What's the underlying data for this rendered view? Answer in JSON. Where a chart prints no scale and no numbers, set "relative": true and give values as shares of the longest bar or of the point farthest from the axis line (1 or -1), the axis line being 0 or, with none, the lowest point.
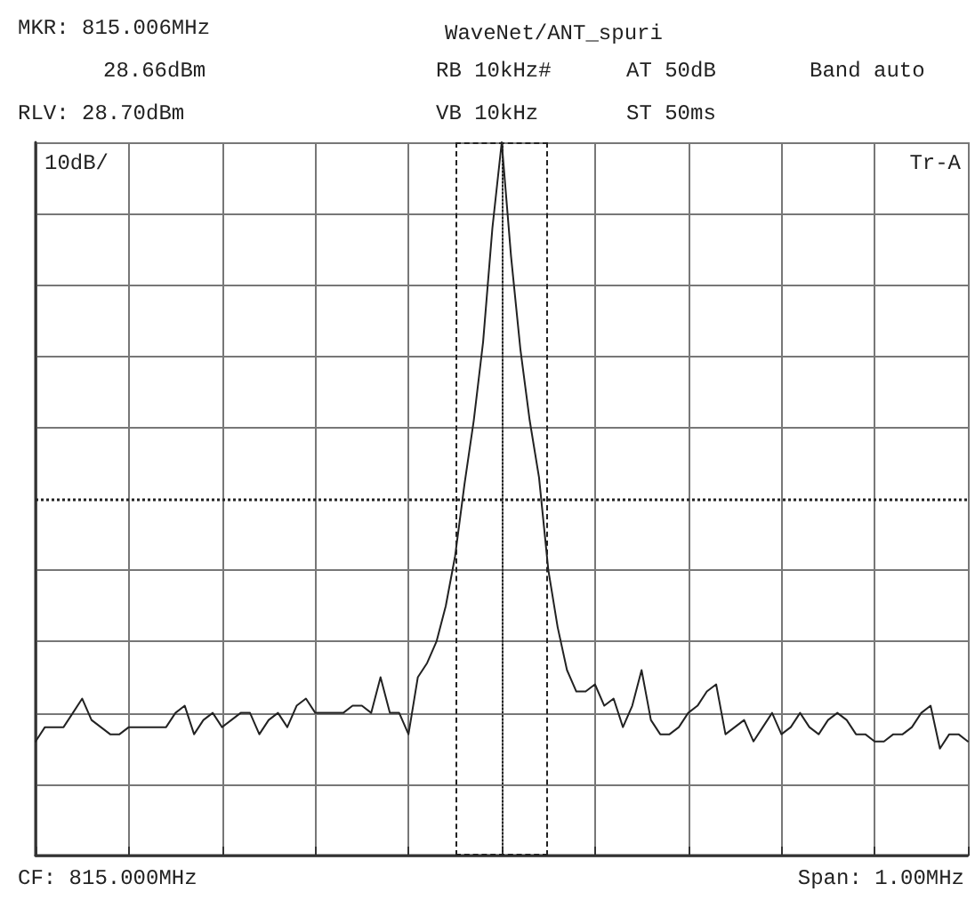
{
  "chart_data": {
    "type": "line",
    "title": "WaveNet/ANT_spuri",
    "annotations": [
      "MKR: 815.006MHz",
      "28.66dBm",
      "RLV: 28.70dBm",
      "RB 10kHz#",
      "AT 50dB",
      "Band auto",
      "VB 10kHz",
      "ST 50ms",
      "10dB/",
      "Tr-A",
      "CF: 815.000MHz",
      "Span: 1.00MHz"
    ],
    "relative": true,
    "categories": [
      null,
      null,
      null,
      null,
      null,
      null,
      null,
      null,
      null,
      null,
      null,
      null,
      null,
      null,
      null,
      null,
      null,
      null,
      null,
      null,
      null,
      null,
      null,
      null,
      null,
      null,
      null,
      null,
      null,
      null,
      null,
      null,
      null,
      null,
      null,
      null,
      null,
      null,
      null,
      null,
      null,
      null,
      null,
      null,
      null,
      null,
      null,
      null,
      null,
      null,
      null,
      null,
      null,
      null,
      null,
      null,
      null,
      null,
      null,
      null,
      null,
      null,
      null,
      null,
      null,
      null,
      null,
      null,
      null,
      null,
      null,
      null,
      null,
      null,
      null,
      null,
      null,
      null,
      null,
      null,
      null,
      null,
      null,
      null,
      null,
      null,
      null,
      null,
      null,
      null,
      null,
      null,
      null,
      null,
      null,
      null,
      null,
      null,
      null,
      null,
      null
    ],
    "series": [
      {
        "color": "#222222",
        "values": [
          0.16,
          0.18,
          0.18,
          0.18,
          0.2,
          0.22,
          0.19,
          0.18,
          0.17,
          0.17,
          0.18,
          0.18,
          0.18,
          0.18,
          0.18,
          0.2,
          0.21,
          0.17,
          0.19,
          0.2,
          0.18,
          0.19,
          0.2,
          0.2,
          0.17,
          0.19,
          0.2,
          0.18,
          0.21,
          0.22,
          0.2,
          0.2,
          0.2,
          0.2,
          0.21,
          0.21,
          0.2,
          0.25,
          0.2,
          0.2,
          0.17,
          0.25,
          0.27,
          0.3,
          0.35,
          0.42,
          0.52,
          0.61,
          0.72,
          0.88,
          1,
          0.84,
          0.71,
          0.61,
          0.53,
          0.4,
          0.32,
          0.26,
          0.23,
          0.23,
          0.24,
          0.21,
          0.22,
          0.18,
          0.21,
          0.26,
          0.19,
          0.17,
          0.17,
          0.18,
          0.2,
          0.21,
          0.23,
          0.24,
          0.17,
          0.18,
          0.19,
          0.16,
          0.18,
          0.2,
          0.17,
          0.18,
          0.2,
          0.18,
          0.17,
          0.19,
          0.2,
          0.19,
          0.17,
          0.17,
          0.16,
          0.16,
          0.17,
          0.17,
          0.18,
          0.2,
          0.21,
          0.15,
          0.17,
          0.17,
          0.16
        ]
      }
    ],
    "ref_lines": [
      {
        "axis": "y",
        "value": 0.5,
        "label": null,
        "line_style": "dotted"
      }
    ],
    "grid": true,
    "line_style": "solid"
  }
}
